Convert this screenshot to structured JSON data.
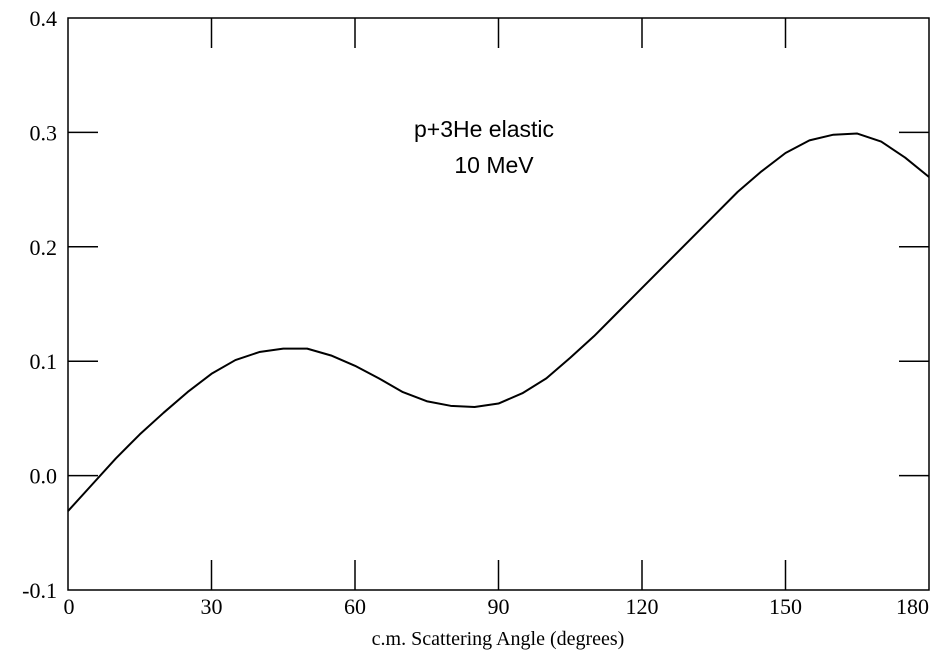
{
  "chart_data": {
    "type": "line",
    "title": "",
    "xlabel": "c.m. Scattering Angle (degrees)",
    "ylabel": "",
    "xlim": [
      0,
      180
    ],
    "ylim": [
      -0.1,
      0.4
    ],
    "x_ticks": [
      "0",
      "30",
      "60",
      "90",
      "120",
      "150",
      "180"
    ],
    "y_ticks": [
      "-0.1",
      "0.0",
      "0.1",
      "0.2",
      "0.3",
      "0.4"
    ],
    "grid": false,
    "annotations": [
      "p+3He elastic",
      "10 MeV"
    ],
    "series": [
      {
        "color": "#000000",
        "x": [
          0,
          5,
          10,
          15,
          20,
          25,
          30,
          35,
          40,
          45,
          50,
          55,
          60,
          65,
          70,
          75,
          80,
          85,
          90,
          95,
          100,
          105,
          110,
          115,
          120,
          125,
          130,
          135,
          140,
          145,
          150,
          155,
          160,
          165,
          170,
          175,
          180
        ],
        "y": [
          -0.031,
          -0.008,
          0.015,
          0.036,
          0.055,
          0.073,
          0.089,
          0.101,
          0.108,
          0.111,
          0.111,
          0.105,
          0.096,
          0.085,
          0.073,
          0.065,
          0.061,
          0.06,
          0.063,
          0.072,
          0.085,
          0.103,
          0.122,
          0.143,
          0.164,
          0.185,
          0.206,
          0.227,
          0.248,
          0.266,
          0.282,
          0.293,
          0.298,
          0.299,
          0.292,
          0.278,
          0.261
        ]
      }
    ]
  }
}
